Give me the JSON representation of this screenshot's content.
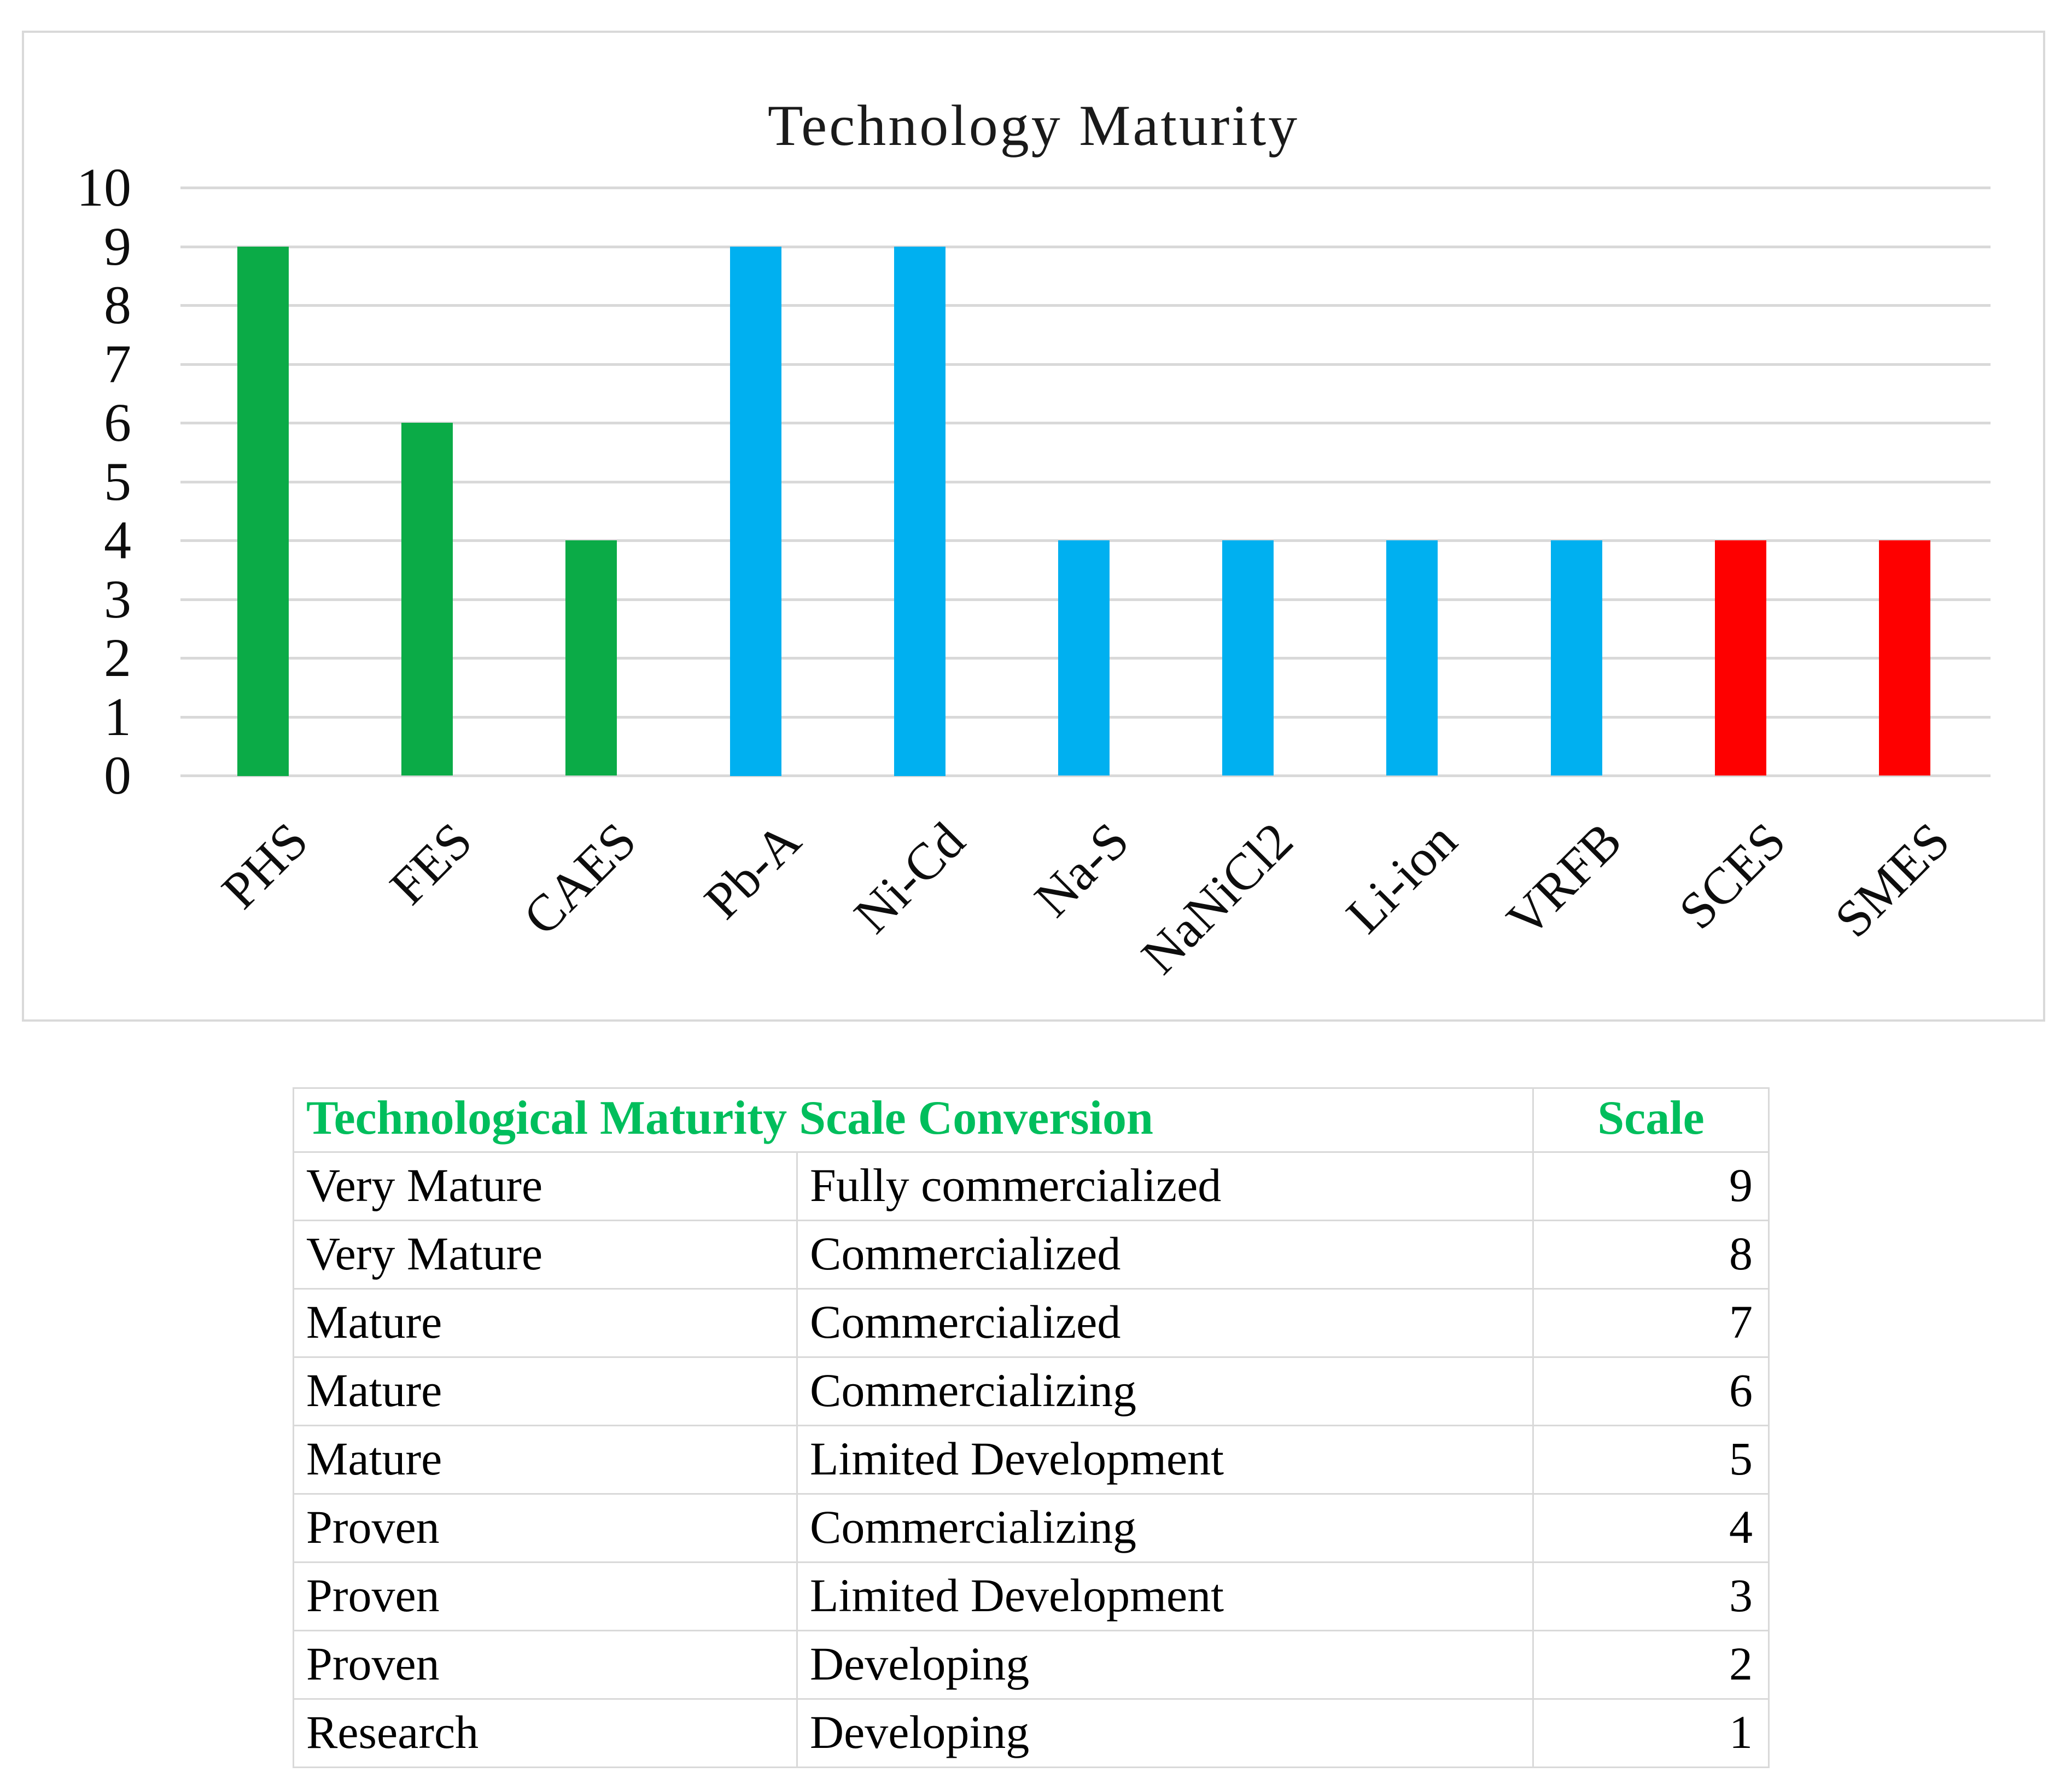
{
  "chart": {
    "title": "Technology Maturity",
    "y_axis": {
      "tick_labels": [
        "0",
        "1",
        "2",
        "3",
        "4",
        "5",
        "6",
        "7",
        "8",
        "9",
        "10"
      ],
      "min": 0,
      "max": 10,
      "step": 1
    },
    "colors": {
      "green": "#0BAB47",
      "blue": "#00B0F0",
      "red": "#FE0000",
      "grid": "#D9D9D9",
      "border": "#D9D9D9",
      "title_text": "#1A1A1A"
    }
  },
  "chart_data": {
    "type": "bar",
    "title": "Technology Maturity",
    "categories": [
      "PHS",
      "FES",
      "CAES",
      "Pb-A",
      "Ni-Cd",
      "Na-S",
      "NaNiCl2",
      "Li-ion",
      "VRFB",
      "SCES",
      "SMES"
    ],
    "values": [
      9,
      6,
      4,
      9,
      9,
      4,
      4,
      4,
      4,
      4,
      4
    ],
    "bar_color_keys": [
      "green",
      "green",
      "green",
      "blue",
      "blue",
      "blue",
      "blue",
      "blue",
      "blue",
      "red",
      "red"
    ],
    "xlabel": "",
    "ylabel": "",
    "ylim": [
      0,
      10
    ],
    "grid": true,
    "legend": false
  },
  "table": {
    "header": {
      "title": "Technological Maturity Scale Conversion",
      "scale_label": "Scale",
      "text_color": "#00BE5C"
    },
    "columns": [
      "maturity",
      "description",
      "scale"
    ],
    "rows": [
      {
        "maturity": "Very Mature",
        "description": "Fully commercialized",
        "scale": "9"
      },
      {
        "maturity": "Very Mature",
        "description": "Commercialized",
        "scale": "8"
      },
      {
        "maturity": "Mature",
        "description": "Commercialized",
        "scale": "7"
      },
      {
        "maturity": "Mature",
        "description": "Commercializing",
        "scale": "6"
      },
      {
        "maturity": "Mature",
        "description": "Limited Development",
        "scale": "5"
      },
      {
        "maturity": "Proven",
        "description": "Commercializing",
        "scale": "4"
      },
      {
        "maturity": "Proven",
        "description": "Limited Development",
        "scale": "3"
      },
      {
        "maturity": "Proven",
        "description": "Developing",
        "scale": "2"
      },
      {
        "maturity": "Research",
        "description": "Developing",
        "scale": "1"
      }
    ]
  }
}
